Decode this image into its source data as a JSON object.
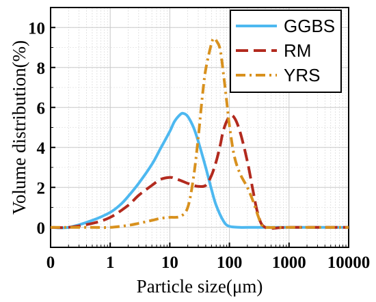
{
  "chart_data": {
    "type": "line",
    "xscale": "log",
    "xlabel": "Particle size(μm)",
    "ylabel": "Volume distribution(%)",
    "xlim": [
      0.1,
      10000
    ],
    "ylim": [
      -1,
      11
    ],
    "x_tick_values": [
      0.1,
      1,
      10,
      100,
      1000,
      10000
    ],
    "x_tick_labels": [
      "0",
      "1",
      "10",
      "100",
      "1000",
      "10000"
    ],
    "y_ticks": [
      0,
      2,
      4,
      6,
      8,
      10
    ],
    "y_tick_labels": [
      "0",
      "2",
      "4",
      "6",
      "8",
      "10"
    ],
    "grid": true,
    "legend_position": "top-right",
    "series": [
      {
        "name": "GGBS",
        "color": "#4db8f0",
        "style": "solid",
        "x": [
          0.1,
          0.2,
          0.5,
          1,
          1.5,
          2,
          3,
          5,
          7,
          10,
          12,
          15,
          17,
          20,
          25,
          30,
          40,
          50,
          60,
          80,
          100,
          150,
          200,
          500,
          1000,
          10000
        ],
        "y": [
          0,
          0,
          0.35,
          0.75,
          1.15,
          1.55,
          2.2,
          3.15,
          3.95,
          4.8,
          5.3,
          5.65,
          5.7,
          5.55,
          5.0,
          4.3,
          3.0,
          1.9,
          1.1,
          0.3,
          0.05,
          0,
          0,
          0,
          0,
          0
        ]
      },
      {
        "name": "RM",
        "color": "#b22a1e",
        "style": "dashed",
        "x": [
          0.1,
          0.2,
          0.5,
          1,
          2,
          3,
          5,
          7,
          10,
          12,
          15,
          20,
          25,
          30,
          40,
          50,
          60,
          70,
          80,
          100,
          120,
          150,
          200,
          250,
          300,
          400,
          1000,
          10000
        ],
        "y": [
          0,
          0,
          0.2,
          0.5,
          1.1,
          1.6,
          2.1,
          2.4,
          2.5,
          2.45,
          2.35,
          2.2,
          2.1,
          2.05,
          2.1,
          2.6,
          3.3,
          4.1,
          4.9,
          5.55,
          5.5,
          4.8,
          3.3,
          1.8,
          0.7,
          0,
          0,
          0
        ]
      },
      {
        "name": "YRS",
        "color": "#d8911e",
        "style": "dashdot",
        "x": [
          0.1,
          0.5,
          1,
          2,
          3,
          5,
          7,
          10,
          15,
          20,
          25,
          30,
          35,
          40,
          50,
          55,
          60,
          70,
          80,
          90,
          100,
          120,
          150,
          200,
          250,
          300,
          350,
          400,
          1000,
          10000
        ],
        "y": [
          0,
          0,
          0,
          0.1,
          0.2,
          0.35,
          0.45,
          0.5,
          0.55,
          1.0,
          2.5,
          4.5,
          6.5,
          7.9,
          9.2,
          9.45,
          9.35,
          8.9,
          7.6,
          6.3,
          5.1,
          3.6,
          2.7,
          2.0,
          1.3,
          0.6,
          0.1,
          0,
          0,
          0
        ]
      }
    ]
  }
}
